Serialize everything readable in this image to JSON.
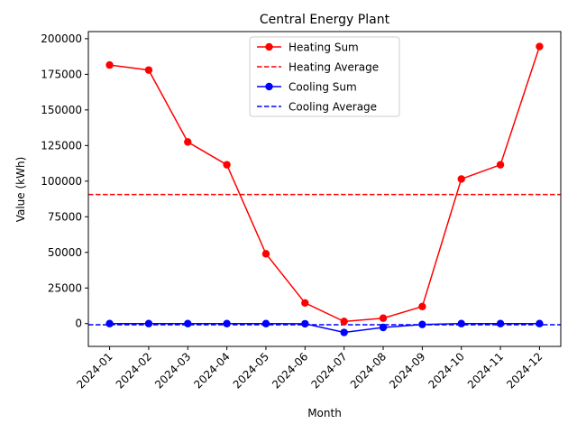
{
  "chart_data": {
    "type": "line",
    "title": "Central Energy Plant",
    "xlabel": "Month",
    "ylabel": "Value (kWh)",
    "categories": [
      "2024-01",
      "2024-02",
      "2024-03",
      "2024-04",
      "2024-05",
      "2024-06",
      "2024-07",
      "2024-08",
      "2024-09",
      "2024-10",
      "2024-11",
      "2024-12"
    ],
    "ylim": [
      -16000,
      205000
    ],
    "yticks": [
      0,
      25000,
      50000,
      75000,
      100000,
      125000,
      150000,
      175000,
      200000
    ],
    "grid": false,
    "legend_position": "top-center",
    "series": [
      {
        "name": "Heating Sum",
        "color": "#ff0000",
        "style": "solid-marker",
        "values": [
          181500,
          178000,
          127500,
          111500,
          49000,
          14500,
          1500,
          3800,
          12000,
          101500,
          111500,
          194500
        ]
      },
      {
        "name": "Cooling Sum",
        "color": "#0000ff",
        "style": "solid-marker",
        "values": [
          0,
          0,
          0,
          0,
          0,
          -100,
          -6200,
          -2700,
          -600,
          0,
          0,
          0
        ]
      }
    ],
    "reference_lines": [
      {
        "name": "Heating Average",
        "color": "#ff0000",
        "style": "dashed",
        "value": 90600
      },
      {
        "name": "Cooling Average",
        "color": "#0000ff",
        "style": "dashed",
        "value": -800
      }
    ],
    "legend": [
      {
        "label": "Heating Sum",
        "color": "#ff0000",
        "style": "solid-marker"
      },
      {
        "label": "Heating Average",
        "color": "#ff0000",
        "style": "dashed"
      },
      {
        "label": "Cooling Sum",
        "color": "#0000ff",
        "style": "solid-marker"
      },
      {
        "label": "Cooling Average",
        "color": "#0000ff",
        "style": "dashed"
      }
    ]
  }
}
